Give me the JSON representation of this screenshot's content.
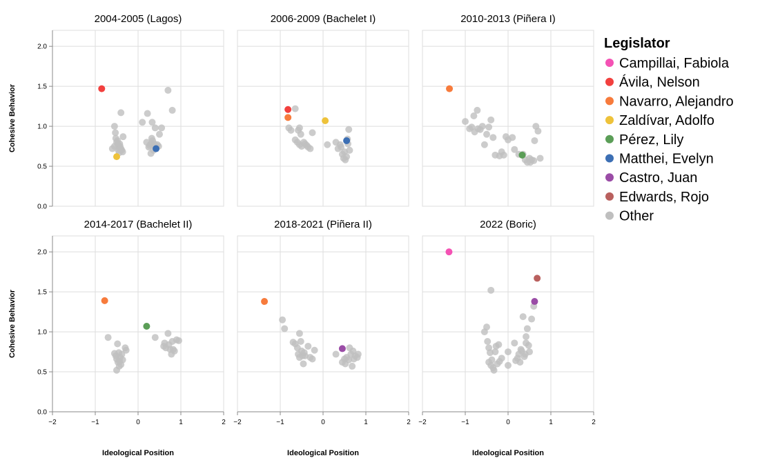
{
  "chart_data": {
    "type": "scatter",
    "xlabel": "Ideological Position",
    "ylabel": "Cohesive Behavior",
    "xlim": [
      -2,
      2
    ],
    "ylim": [
      0,
      2.2
    ],
    "xticks": [
      -2,
      -1,
      0,
      1,
      2
    ],
    "yticks": [
      0.0,
      0.5,
      1.0,
      1.5,
      2.0
    ],
    "ytick_labels": [
      "0.0",
      "0.5",
      "1.0",
      "1.5",
      "2.0"
    ],
    "grid": true,
    "legend": {
      "title": "Legislator",
      "placement": "right",
      "entries": [
        {
          "name": "Campillai, Fabiola",
          "color": "#f452b4"
        },
        {
          "name": "Ávila, Nelson",
          "color": "#f2403e"
        },
        {
          "name": "Navarro, Alejandro",
          "color": "#f77b3c"
        },
        {
          "name": "Zaldívar, Adolfo",
          "color": "#eec23a"
        },
        {
          "name": "Pérez, Lily",
          "color": "#5b9e57"
        },
        {
          "name": "Matthei, Evelyn",
          "color": "#3c6fb4"
        },
        {
          "name": "Castro, Juan",
          "color": "#9a4ca6"
        },
        {
          "name": "Edwards, Rojo",
          "color": "#b9605e"
        },
        {
          "name": "Other",
          "color": "#bfbfbf"
        }
      ]
    },
    "panels": [
      {
        "title": "2004-2005 (Lagos)",
        "other": [
          [
            -0.6,
            0.72
          ],
          [
            -0.55,
            0.75
          ],
          [
            -0.55,
            1.0
          ],
          [
            -0.53,
            0.92
          ],
          [
            -0.52,
            0.85
          ],
          [
            -0.5,
            0.8
          ],
          [
            -0.48,
            0.82
          ],
          [
            -0.47,
            0.77
          ],
          [
            -0.46,
            0.7
          ],
          [
            -0.45,
            0.73
          ],
          [
            -0.44,
            0.67
          ],
          [
            -0.43,
            0.78
          ],
          [
            -0.42,
            0.75
          ],
          [
            -0.4,
            0.72
          ],
          [
            -0.38,
            0.7
          ],
          [
            -0.4,
            1.17
          ],
          [
            -0.35,
            0.87
          ],
          [
            -0.36,
            0.68
          ],
          [
            0.1,
            1.05
          ],
          [
            0.2,
            0.8
          ],
          [
            0.22,
            1.16
          ],
          [
            0.25,
            0.74
          ],
          [
            0.27,
            0.76
          ],
          [
            0.3,
            0.66
          ],
          [
            0.3,
            0.78
          ],
          [
            0.32,
            0.85
          ],
          [
            0.33,
            1.05
          ],
          [
            0.34,
            0.82
          ],
          [
            0.36,
            0.7
          ],
          [
            0.38,
            0.78
          ],
          [
            0.4,
            0.98
          ],
          [
            0.42,
            0.74
          ],
          [
            0.45,
            0.77
          ],
          [
            0.48,
            0.75
          ],
          [
            0.5,
            0.9
          ],
          [
            0.55,
            0.98
          ],
          [
            0.7,
            1.45
          ],
          [
            0.8,
            1.2
          ]
        ],
        "highlight": [
          {
            "name": "Ávila, Nelson",
            "x": -0.85,
            "y": 1.47
          },
          {
            "name": "Zaldívar, Adolfo",
            "x": -0.5,
            "y": 0.62
          },
          {
            "name": "Matthei, Evelyn",
            "x": 0.42,
            "y": 0.72
          }
        ]
      },
      {
        "title": "2006-2009 (Bachelet I)",
        "other": [
          [
            -0.8,
            0.98
          ],
          [
            -0.75,
            0.95
          ],
          [
            -0.65,
            1.22
          ],
          [
            -0.65,
            0.83
          ],
          [
            -0.6,
            0.8
          ],
          [
            -0.58,
            0.95
          ],
          [
            -0.55,
            0.98
          ],
          [
            -0.55,
            0.77
          ],
          [
            -0.52,
            0.9
          ],
          [
            -0.5,
            0.75
          ],
          [
            -0.45,
            0.8
          ],
          [
            -0.42,
            0.78
          ],
          [
            -0.38,
            0.76
          ],
          [
            -0.35,
            0.74
          ],
          [
            -0.3,
            0.72
          ],
          [
            -0.25,
            0.92
          ],
          [
            0.1,
            0.77
          ],
          [
            0.3,
            0.8
          ],
          [
            0.35,
            0.72
          ],
          [
            0.4,
            0.77
          ],
          [
            0.42,
            0.74
          ],
          [
            0.45,
            0.65
          ],
          [
            0.48,
            0.6
          ],
          [
            0.5,
            0.68
          ],
          [
            0.52,
            0.58
          ],
          [
            0.55,
            0.62
          ],
          [
            0.58,
            0.78
          ],
          [
            0.6,
            0.96
          ],
          [
            0.62,
            0.7
          ],
          [
            0.57,
            0.84
          ]
        ],
        "highlight": [
          {
            "name": "Ávila, Nelson",
            "x": -0.82,
            "y": 1.21
          },
          {
            "name": "Navarro, Alejandro",
            "x": -0.82,
            "y": 1.11
          },
          {
            "name": "Zaldívar, Adolfo",
            "x": 0.05,
            "y": 1.07
          },
          {
            "name": "Matthei, Evelyn",
            "x": 0.55,
            "y": 0.82
          }
        ]
      },
      {
        "title": "2010-2013 (Piñera I)",
        "other": [
          [
            -1.0,
            1.06
          ],
          [
            -0.9,
            0.97
          ],
          [
            -0.85,
            0.99
          ],
          [
            -0.8,
            1.13
          ],
          [
            -0.78,
            0.93
          ],
          [
            -0.72,
            1.2
          ],
          [
            -0.7,
            0.97
          ],
          [
            -0.65,
            0.96
          ],
          [
            -0.6,
            1.0
          ],
          [
            -0.55,
            0.77
          ],
          [
            -0.5,
            0.9
          ],
          [
            -0.45,
            0.99
          ],
          [
            -0.4,
            1.08
          ],
          [
            -0.35,
            0.86
          ],
          [
            -0.3,
            0.64
          ],
          [
            -0.2,
            0.63
          ],
          [
            -0.15,
            0.68
          ],
          [
            -0.1,
            0.64
          ],
          [
            -0.05,
            0.87
          ],
          [
            0.0,
            0.83
          ],
          [
            0.1,
            0.86
          ],
          [
            0.15,
            0.71
          ],
          [
            0.25,
            0.65
          ],
          [
            0.35,
            0.65
          ],
          [
            0.4,
            0.58
          ],
          [
            0.45,
            0.55
          ],
          [
            0.5,
            0.6
          ],
          [
            0.52,
            0.55
          ],
          [
            0.55,
            0.58
          ],
          [
            0.6,
            0.57
          ],
          [
            0.62,
            0.82
          ],
          [
            0.65,
            1.0
          ],
          [
            0.7,
            0.94
          ],
          [
            0.75,
            0.6
          ]
        ],
        "highlight": [
          {
            "name": "Navarro, Alejandro",
            "x": -1.37,
            "y": 1.47
          },
          {
            "name": "Pérez, Lily",
            "x": 0.33,
            "y": 0.64
          }
        ]
      },
      {
        "title": "2014-2017 (Bachelet II)",
        "other": [
          [
            -0.7,
            0.93
          ],
          [
            -0.55,
            0.73
          ],
          [
            -0.52,
            0.7
          ],
          [
            -0.5,
            0.66
          ],
          [
            -0.5,
            0.52
          ],
          [
            -0.48,
            0.85
          ],
          [
            -0.47,
            0.62
          ],
          [
            -0.45,
            0.74
          ],
          [
            -0.44,
            0.57
          ],
          [
            -0.43,
            0.63
          ],
          [
            -0.42,
            0.68
          ],
          [
            -0.4,
            0.59
          ],
          [
            -0.38,
            0.72
          ],
          [
            -0.36,
            0.65
          ],
          [
            -0.3,
            0.8
          ],
          [
            -0.28,
            0.77
          ],
          [
            0.4,
            0.93
          ],
          [
            0.6,
            0.82
          ],
          [
            0.62,
            0.86
          ],
          [
            0.65,
            0.8
          ],
          [
            0.7,
            0.98
          ],
          [
            0.72,
            0.84
          ],
          [
            0.75,
            0.78
          ],
          [
            0.78,
            0.72
          ],
          [
            0.8,
            0.88
          ],
          [
            0.82,
            0.78
          ],
          [
            0.85,
            0.76
          ],
          [
            0.9,
            0.9
          ],
          [
            0.95,
            0.89
          ]
        ],
        "highlight": [
          {
            "name": "Navarro, Alejandro",
            "x": -0.78,
            "y": 1.39
          },
          {
            "name": "Pérez, Lily",
            "x": 0.2,
            "y": 1.07
          }
        ]
      },
      {
        "title": "2018-2021 (Piñera II)",
        "other": [
          [
            -0.95,
            1.15
          ],
          [
            -0.9,
            1.04
          ],
          [
            -0.7,
            0.87
          ],
          [
            -0.65,
            0.85
          ],
          [
            -0.6,
            0.8
          ],
          [
            -0.58,
            0.72
          ],
          [
            -0.55,
            0.98
          ],
          [
            -0.55,
            0.68
          ],
          [
            -0.52,
            0.88
          ],
          [
            -0.5,
            0.76
          ],
          [
            -0.48,
            0.7
          ],
          [
            -0.46,
            0.6
          ],
          [
            -0.44,
            0.74
          ],
          [
            -0.42,
            0.7
          ],
          [
            -0.35,
            0.82
          ],
          [
            -0.3,
            0.68
          ],
          [
            -0.25,
            0.66
          ],
          [
            -0.2,
            0.77
          ],
          [
            0.3,
            0.72
          ],
          [
            0.45,
            0.62
          ],
          [
            0.5,
            0.66
          ],
          [
            0.52,
            0.6
          ],
          [
            0.55,
            0.68
          ],
          [
            0.6,
            0.65
          ],
          [
            0.62,
            0.8
          ],
          [
            0.65,
            0.72
          ],
          [
            0.68,
            0.57
          ],
          [
            0.7,
            0.76
          ],
          [
            0.72,
            0.66
          ],
          [
            0.75,
            0.7
          ],
          [
            0.8,
            0.68
          ],
          [
            0.82,
            0.72
          ]
        ],
        "highlight": [
          {
            "name": "Navarro, Alejandro",
            "x": -1.37,
            "y": 1.38
          },
          {
            "name": "Castro, Juan",
            "x": 0.45,
            "y": 0.79
          }
        ]
      },
      {
        "title": "2022 (Boric)",
        "other": [
          [
            -0.55,
            1.0
          ],
          [
            -0.5,
            1.06
          ],
          [
            -0.48,
            0.88
          ],
          [
            -0.45,
            0.8
          ],
          [
            -0.45,
            0.62
          ],
          [
            -0.42,
            0.74
          ],
          [
            -0.4,
            0.58
          ],
          [
            -0.4,
            1.52
          ],
          [
            -0.38,
            0.65
          ],
          [
            -0.35,
            0.55
          ],
          [
            -0.33,
            0.52
          ],
          [
            -0.3,
            0.75
          ],
          [
            -0.28,
            0.82
          ],
          [
            -0.25,
            0.6
          ],
          [
            -0.22,
            0.84
          ],
          [
            -0.2,
            0.63
          ],
          [
            -0.15,
            0.67
          ],
          [
            0.0,
            0.75
          ],
          [
            0.0,
            0.58
          ],
          [
            0.15,
            0.86
          ],
          [
            0.18,
            0.64
          ],
          [
            0.22,
            0.67
          ],
          [
            0.25,
            0.72
          ],
          [
            0.28,
            0.62
          ],
          [
            0.3,
            0.78
          ],
          [
            0.32,
            0.76
          ],
          [
            0.35,
            1.19
          ],
          [
            0.38,
            0.69
          ],
          [
            0.4,
            0.72
          ],
          [
            0.42,
            0.94
          ],
          [
            0.45,
            1.04
          ],
          [
            0.48,
            0.83
          ],
          [
            0.5,
            0.75
          ],
          [
            0.55,
            1.16
          ],
          [
            0.6,
            1.32
          ],
          [
            0.42,
            0.86
          ]
        ],
        "highlight": [
          {
            "name": "Campillai, Fabiola",
            "x": -1.38,
            "y": 2.0
          },
          {
            "name": "Edwards, Rojo",
            "x": 0.68,
            "y": 1.67
          },
          {
            "name": "Castro, Juan",
            "x": 0.62,
            "y": 1.38
          }
        ]
      }
    ]
  }
}
